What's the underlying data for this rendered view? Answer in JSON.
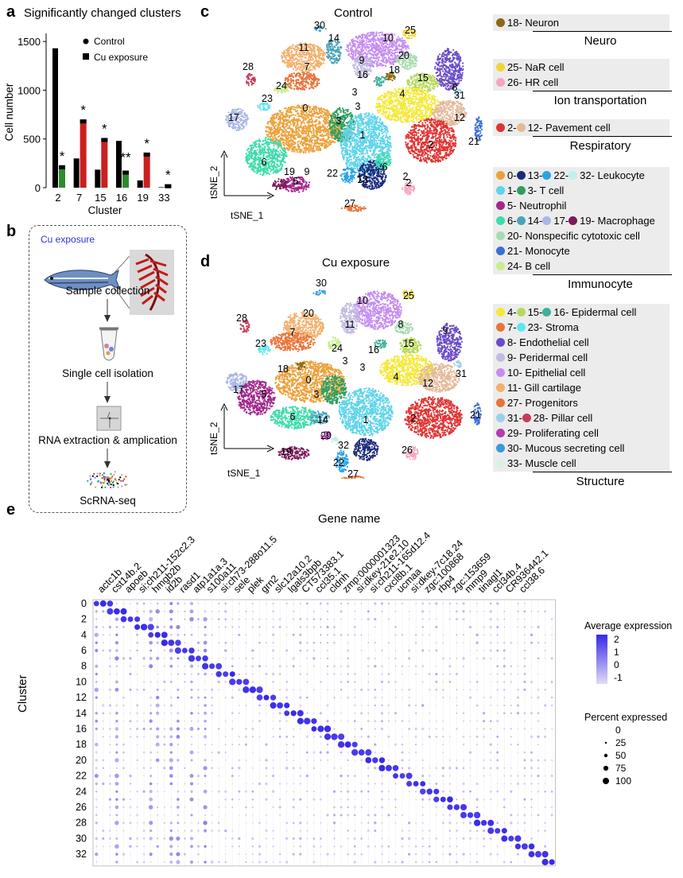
{
  "panel_a": {
    "label": "a",
    "title": "Significantly changed clusters",
    "legend": [
      "Control",
      "Cu exposure"
    ],
    "chart_data": {
      "type": "bar",
      "title": "Significantly changed clusters",
      "xlabel": "Cluster",
      "ylabel": "Cell number",
      "categories": [
        "2",
        "7",
        "15",
        "16",
        "19",
        "33"
      ],
      "series": [
        {
          "name": "Control",
          "values": [
            1430,
            300,
            185,
            480,
            75,
            5
          ]
        },
        {
          "name": "Cu exposure",
          "values": [
            230,
            700,
            510,
            175,
            360,
            35
          ]
        }
      ],
      "cu_bar_colors": [
        "#2e8b2e",
        "#cc1f1f",
        "#cc1f1f",
        "#2e8b2e",
        "#cc1f1f",
        "#000000"
      ],
      "significance": [
        "*",
        "*",
        "*",
        "**",
        "*",
        "*"
      ],
      "yticks": [
        0,
        500,
        1000,
        1500
      ],
      "ylim": [
        0,
        1550
      ]
    }
  },
  "panel_b": {
    "label": "b",
    "badge": "Cu exposure",
    "steps": [
      "Sample collection",
      "Single cell isolation",
      "RNA extraction & amplication",
      "ScRNA-seq"
    ]
  },
  "panel_c": {
    "label": "c",
    "title": "Control",
    "axis_y": "tSNE_2",
    "axis_x": "tSNE_1",
    "cluster_labels": [
      "30",
      "14",
      "10",
      "25",
      "11",
      "9",
      "20",
      "28",
      "7",
      "16",
      "18",
      "15",
      "8",
      "24",
      "23",
      "4",
      "31",
      "0",
      "3",
      "3",
      "12",
      "17",
      "3",
      "1",
      "2",
      "21",
      "6",
      "6",
      "19",
      "9",
      "2",
      "22",
      "5",
      "13",
      "2",
      "27"
    ]
  },
  "panel_d": {
    "label": "d",
    "title": "Cu exposure",
    "axis_y": "tSNE_2",
    "axis_x": "tSNE_1",
    "cluster_labels": [
      "30",
      "10",
      "25",
      "11",
      "9",
      "8",
      "20",
      "28",
      "7",
      "24",
      "16",
      "15",
      "23",
      "3",
      "3",
      "31",
      "18",
      "0",
      "4",
      "12",
      "17",
      "5",
      "3",
      "2",
      "21",
      "6",
      "14",
      "1",
      "29",
      "32",
      "19",
      "22",
      "26",
      "27"
    ]
  },
  "legend": {
    "groups": [
      {
        "title": "Neuro",
        "items": [
          {
            "text": "18- Neuron",
            "dots": [
              "#8b6914"
            ]
          }
        ]
      },
      {
        "title": "Ion transportation",
        "items": [
          {
            "text": "25- NaR cell",
            "dots": [
              "#f2d43a"
            ]
          },
          {
            "text": "26- HR cell",
            "dots": [
              "#f4a6c0"
            ]
          }
        ]
      },
      {
        "title": "Respiratory",
        "items": [
          {
            "text": "2- ",
            "dots": [
              "#e03434"
            ],
            "text2": "12- Pavement cell",
            "dots2": [
              "#e3b99a"
            ]
          }
        ]
      },
      {
        "title": "Immunocyte",
        "items": [
          {
            "text": "0- ",
            "dots": [
              "#eba23c"
            ],
            "parts": [
              {
                "dot": "#eba23c",
                "t": "0- "
              },
              {
                "dot": "#1c2a7a",
                "t": "13- "
              },
              {
                "dot": "#2aa3e6",
                "t": "22- "
              },
              {
                "dot": "#bff0ec",
                "t": "32- Leukocyte"
              }
            ]
          },
          {
            "parts": [
              {
                "dot": "#5fd4ea",
                "t": "1- "
              },
              {
                "dot": "#2e9e5e",
                "t": "3- T cell"
              }
            ]
          },
          {
            "parts": [
              {
                "dot": "#a1288c",
                "t": "5- Neutrophil"
              }
            ]
          },
          {
            "parts": [
              {
                "dot": "#3fdcab",
                "t": "6- "
              },
              {
                "dot": "#4aa3b8",
                "t": "14- "
              },
              {
                "dot": "#a9b6e6",
                "t": "17- "
              },
              {
                "dot": "#7d1a5a",
                "t": "19- Macrophage"
              }
            ]
          },
          {
            "parts": [
              {
                "dot": "#a8dcb0",
                "t": "20- Nonspecific cytotoxic cell"
              }
            ]
          },
          {
            "parts": [
              {
                "dot": "#3b6fd6",
                "t": "21- Monocyte"
              }
            ]
          },
          {
            "parts": [
              {
                "dot": "#c8ee8e",
                "t": "24- B cell"
              }
            ]
          }
        ]
      },
      {
        "title": "Structure",
        "items": [
          {
            "parts": [
              {
                "dot": "#f4e83a",
                "t": "4- "
              },
              {
                "dot": "#b6d95a",
                "t": "15- "
              },
              {
                "dot": "#40b09a",
                "t": "16- Epidermal cell"
              }
            ]
          },
          {
            "parts": [
              {
                "dot": "#e8743a",
                "t": "7- "
              },
              {
                "dot": "#5ee6f0",
                "t": "23- Stroma"
              }
            ]
          },
          {
            "parts": [
              {
                "dot": "#6a4cc8",
                "t": "8- Endothelial cell"
              }
            ]
          },
          {
            "parts": [
              {
                "dot": "#c0bce0",
                "t": "9- Peridermal cell"
              }
            ]
          },
          {
            "parts": [
              {
                "dot": "#c58ef0",
                "t": "10- Epithelial cell"
              }
            ]
          },
          {
            "parts": [
              {
                "dot": "#f2b06c",
                "t": "11- Gill cartilage"
              }
            ]
          },
          {
            "parts": [
              {
                "dot": "#e8743a",
                "t": "27- Progenitors"
              }
            ]
          },
          {
            "parts": [
              {
                "dot": "#9cd0e8",
                "t": "31- "
              },
              {
                "dot": "#c83a5a",
                "t": "28- Pillar cell"
              }
            ]
          },
          {
            "parts": [
              {
                "dot": "#b43cb0",
                "t": "29- Proliferating cell"
              }
            ]
          },
          {
            "parts": [
              {
                "dot": "#3a9ad8",
                "t": "30- Mucous secreting cell"
              }
            ]
          },
          {
            "parts": [
              {
                "dot": "#d8f2e0",
                "t": "33- Muscle cell"
              }
            ]
          }
        ]
      }
    ]
  },
  "panel_e": {
    "label": "e",
    "title": "Gene name",
    "ylabel": "Cluster",
    "legend_expr_title": "Average expression",
    "legend_expr_ticks": [
      "2",
      "1",
      "0",
      "-1"
    ],
    "legend_pct_title": "Percent expressed",
    "legend_pct_ticks": [
      "0",
      "25",
      "50",
      "75",
      "100"
    ],
    "row_labels": [
      "0",
      "2",
      "4",
      "6",
      "8",
      "10",
      "12",
      "14",
      "16",
      "18",
      "20",
      "22",
      "24",
      "26",
      "28",
      "30",
      "32"
    ],
    "genes": [
      "actc1b",
      "cst14b.2",
      "apoeb",
      "si:ch211-152c2.3",
      "hmgb2b",
      "id2b",
      "rasd1",
      "atp1a1a.3",
      "s100a11",
      "si:ch73-288o11.5",
      "sele",
      "plek",
      "grn2",
      "slc12a10.2",
      "lgals3bpb",
      "CT573383.1",
      "ccl35.1",
      "cldnh",
      "zmp:0000001323",
      "si:dkey-21e2.10",
      "si:ch211-165d12.4",
      "cxcl8b.1",
      "ucmaa",
      "si:dkey-7c18.24",
      "zgc:100868",
      "rbp4",
      "zgc:153659",
      "mmp9",
      "tinagl1",
      "ccl34b.4",
      "CR936442.1",
      "ccl38.6"
    ],
    "chart_data": {
      "type": "scatter",
      "title": "Gene name",
      "ylabel": "Cluster",
      "rows": 34,
      "columns": 68,
      "color_range": [
        -1,
        2
      ],
      "size_range": [
        0,
        100
      ]
    }
  }
}
